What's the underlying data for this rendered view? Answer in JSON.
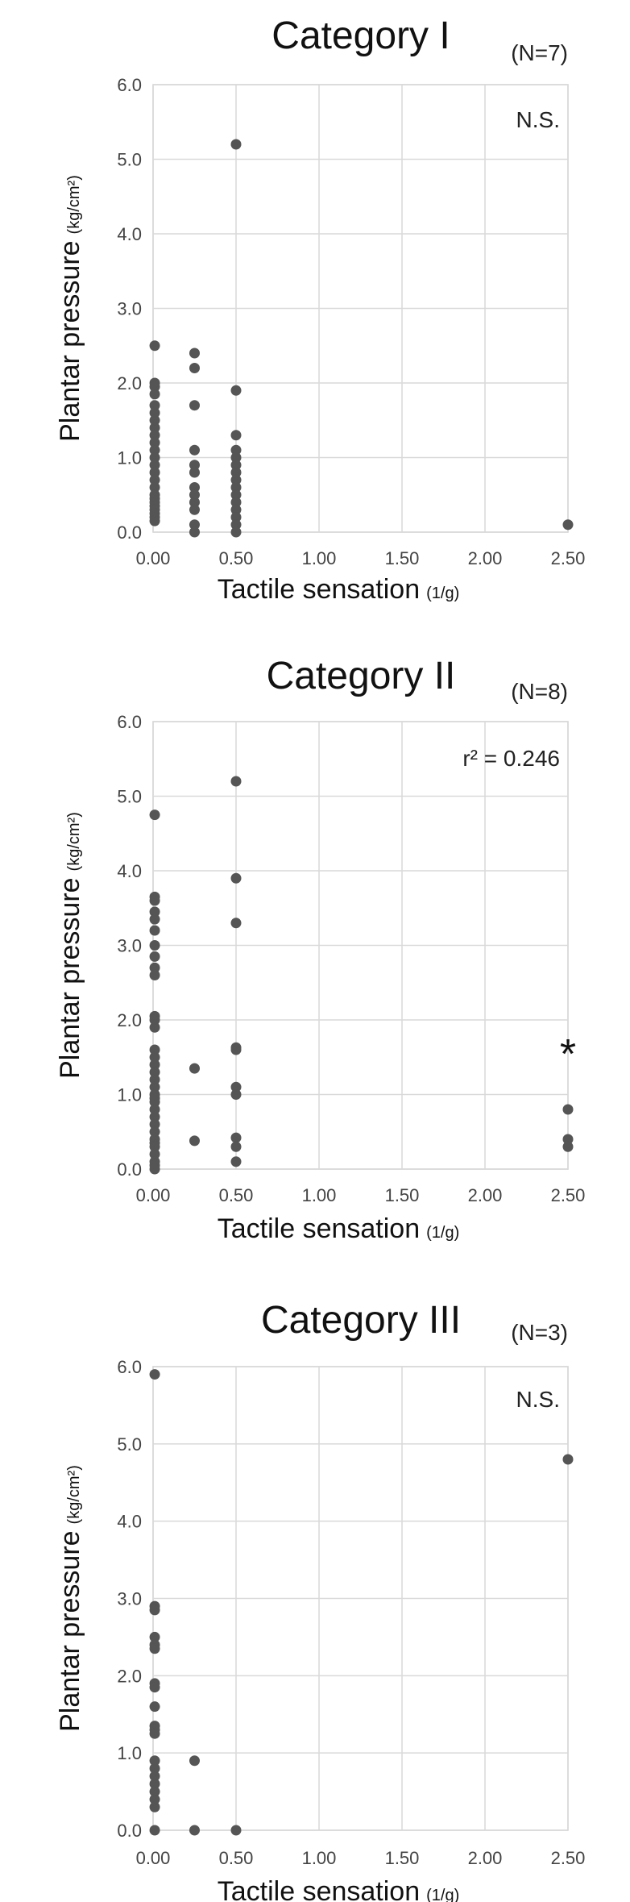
{
  "chart_data": [
    {
      "type": "scatter",
      "title": "Category I",
      "n_label": "(N=7)",
      "stat_label": "N.S.",
      "marker": "",
      "xlabel": "Tactile sensation",
      "xunit": "(1/g)",
      "ylabel": "Plantar pressure",
      "yunit": "(kg/cm²)",
      "xlim": [
        0,
        2.5
      ],
      "ylim": [
        0,
        6
      ],
      "xticks": [
        "0.00",
        "0.50",
        "1.00",
        "1.50",
        "2.00",
        "2.50"
      ],
      "yticks": [
        "0.0",
        "1.0",
        "2.0",
        "3.0",
        "4.0",
        "5.0",
        "6.0"
      ],
      "grid": true,
      "color": "#555555",
      "x": [
        0.01,
        0.01,
        0.01,
        0.01,
        0.01,
        0.01,
        0.01,
        0.01,
        0.01,
        0.01,
        0.01,
        0.01,
        0.01,
        0.01,
        0.01,
        0.01,
        0.01,
        0.01,
        0.01,
        0.01,
        0.01,
        0.01,
        0.01,
        0.01,
        0.25,
        0.25,
        0.25,
        0.25,
        0.25,
        0.25,
        0.25,
        0.25,
        0.25,
        0.25,
        0.25,
        0.25,
        0.5,
        0.5,
        0.5,
        0.5,
        0.5,
        0.5,
        0.5,
        0.5,
        0.5,
        0.5,
        0.5,
        0.5,
        0.5,
        0.5,
        0.5,
        2.5
      ],
      "y": [
        2.5,
        2.0,
        1.95,
        1.85,
        1.7,
        1.6,
        1.5,
        1.4,
        1.3,
        1.2,
        1.1,
        1.0,
        0.9,
        0.8,
        0.7,
        0.6,
        0.5,
        0.45,
        0.4,
        0.35,
        0.3,
        0.25,
        0.2,
        0.15,
        2.4,
        2.2,
        1.7,
        1.1,
        0.9,
        0.8,
        0.6,
        0.5,
        0.4,
        0.3,
        0.1,
        0.0,
        5.2,
        1.9,
        1.3,
        1.1,
        1.0,
        0.9,
        0.8,
        0.7,
        0.6,
        0.5,
        0.4,
        0.3,
        0.2,
        0.1,
        0.0,
        0.1
      ]
    },
    {
      "type": "scatter",
      "title": "Category II",
      "n_label": "(N=8)",
      "stat_label": "r² = 0.246",
      "marker": "*",
      "xlabel": "Tactile sensation",
      "xunit": "(1/g)",
      "ylabel": "Plantar pressure",
      "yunit": "(kg/cm²)",
      "xlim": [
        0,
        2.5
      ],
      "ylim": [
        0,
        6
      ],
      "xticks": [
        "0.00",
        "0.50",
        "1.00",
        "1.50",
        "2.00",
        "2.50"
      ],
      "yticks": [
        "0.0",
        "1.0",
        "2.0",
        "3.0",
        "4.0",
        "5.0",
        "6.0"
      ],
      "grid": true,
      "color": "#555555",
      "x": [
        0.01,
        0.01,
        0.01,
        0.01,
        0.01,
        0.01,
        0.01,
        0.01,
        0.01,
        0.01,
        0.01,
        0.01,
        0.01,
        0.01,
        0.01,
        0.01,
        0.01,
        0.01,
        0.01,
        0.01,
        0.01,
        0.01,
        0.01,
        0.01,
        0.01,
        0.01,
        0.01,
        0.01,
        0.01,
        0.01,
        0.01,
        0.01,
        0.01,
        0.25,
        0.25,
        0.5,
        0.5,
        0.5,
        0.5,
        0.5,
        0.5,
        0.5,
        0.5,
        0.5,
        0.5,
        2.5,
        2.5,
        2.5
      ],
      "y": [
        4.75,
        3.65,
        3.6,
        3.45,
        3.35,
        3.2,
        3.0,
        2.85,
        2.7,
        2.6,
        2.05,
        2.0,
        1.9,
        1.6,
        1.5,
        1.4,
        1.3,
        1.2,
        1.1,
        1.0,
        0.95,
        0.9,
        0.8,
        0.7,
        0.6,
        0.5,
        0.4,
        0.35,
        0.3,
        0.2,
        0.1,
        0.05,
        0.0,
        1.35,
        0.38,
        5.2,
        3.9,
        3.3,
        1.63,
        1.6,
        1.1,
        1.0,
        0.42,
        0.3,
        0.1,
        0.8,
        0.4,
        0.3
      ]
    },
    {
      "type": "scatter",
      "title": "Category III",
      "n_label": "(N=3)",
      "stat_label": "N.S.",
      "marker": "",
      "xlabel": "Tactile sensation",
      "xunit": "(1/g)",
      "ylabel": "Plantar pressure",
      "yunit": "(kg/cm²)",
      "xlim": [
        0,
        2.5
      ],
      "ylim": [
        0,
        6
      ],
      "xticks": [
        "0.00",
        "0.50",
        "1.00",
        "1.50",
        "2.00",
        "2.50"
      ],
      "yticks": [
        "0.0",
        "1.0",
        "2.0",
        "3.0",
        "4.0",
        "5.0",
        "6.0"
      ],
      "grid": true,
      "color": "#555555",
      "x": [
        0.01,
        0.01,
        0.01,
        0.01,
        0.01,
        0.01,
        0.01,
        0.01,
        0.01,
        0.01,
        0.01,
        0.01,
        0.01,
        0.01,
        0.01,
        0.01,
        0.01,
        0.01,
        0.01,
        0.01,
        0.25,
        0.25,
        0.5,
        2.5
      ],
      "y": [
        5.9,
        2.9,
        2.85,
        2.5,
        2.4,
        2.35,
        1.9,
        1.85,
        1.6,
        1.35,
        1.3,
        1.25,
        0.9,
        0.8,
        0.7,
        0.6,
        0.5,
        0.4,
        0.3,
        0.0,
        0.9,
        0.0,
        0.0,
        4.8
      ]
    }
  ]
}
